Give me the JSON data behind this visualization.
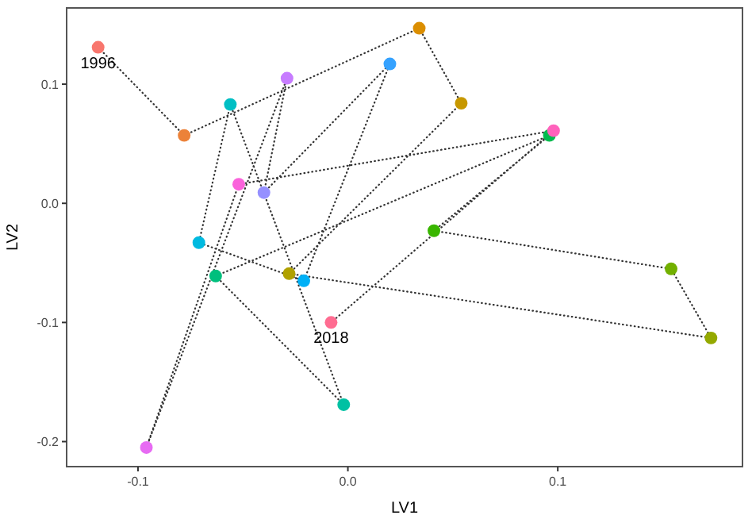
{
  "chart_data": {
    "type": "scatter",
    "xlabel": "LV1",
    "ylabel": "LV2",
    "xlim": [
      -0.134,
      0.188
    ],
    "ylim": [
      -0.221,
      0.164
    ],
    "xticks": [
      -0.1,
      {
        "value": 0,
        "label": "0.0"
      },
      0.1
    ],
    "yticks": [
      -0.2,
      -0.1,
      {
        "value": 0,
        "label": "0.0"
      },
      0.1
    ],
    "grid": false,
    "marker": "circle",
    "x": [
      -0.119,
      -0.078,
      0.034,
      0.054,
      -0.028,
      0.173,
      0.154,
      0.041,
      0.096,
      -0.063,
      -0.002,
      -0.056,
      -0.071,
      -0.021,
      0.02,
      -0.04,
      -0.029,
      -0.096,
      -0.052,
      0.098,
      -0.008
    ],
    "series": [
      {
        "type": "line",
        "color": "#333333",
        "line_style": "dotted",
        "marker": "none",
        "values": [
          0.131,
          0.057,
          0.147,
          0.084,
          -0.059,
          -0.113,
          -0.055,
          -0.023,
          0.057,
          -0.061,
          -0.169,
          0.083,
          -0.033,
          -0.065,
          0.117,
          0.009,
          0.105,
          -0.205,
          0.016,
          0.061,
          -0.1
        ]
      },
      {
        "colors": [
          "#F8766D",
          "#EC8239",
          "#DB8E00",
          "#C79800",
          "#B0A100",
          "#94A900",
          "#72B000",
          "#39B600",
          "#00BB4E",
          "#00BF7D",
          "#00C1A3",
          "#00BFC4",
          "#00BAE0",
          "#00B0F6",
          "#35A2FF",
          "#9590FF",
          "#C77CFF",
          "#E76BF3",
          "#FA62DB",
          "#FF62BC",
          "#FF6C91"
        ],
        "values": [
          0.131,
          0.057,
          0.147,
          0.084,
          -0.059,
          -0.113,
          -0.055,
          -0.023,
          0.057,
          -0.061,
          -0.169,
          0.083,
          -0.033,
          -0.065,
          0.117,
          0.009,
          0.105,
          -0.205,
          0.016,
          0.061,
          -0.1
        ]
      }
    ],
    "annotations": [
      {
        "text": "1996",
        "x": -0.119,
        "y": 0.131
      },
      {
        "text": "2018",
        "x": -0.008,
        "y": -0.1
      }
    ]
  }
}
